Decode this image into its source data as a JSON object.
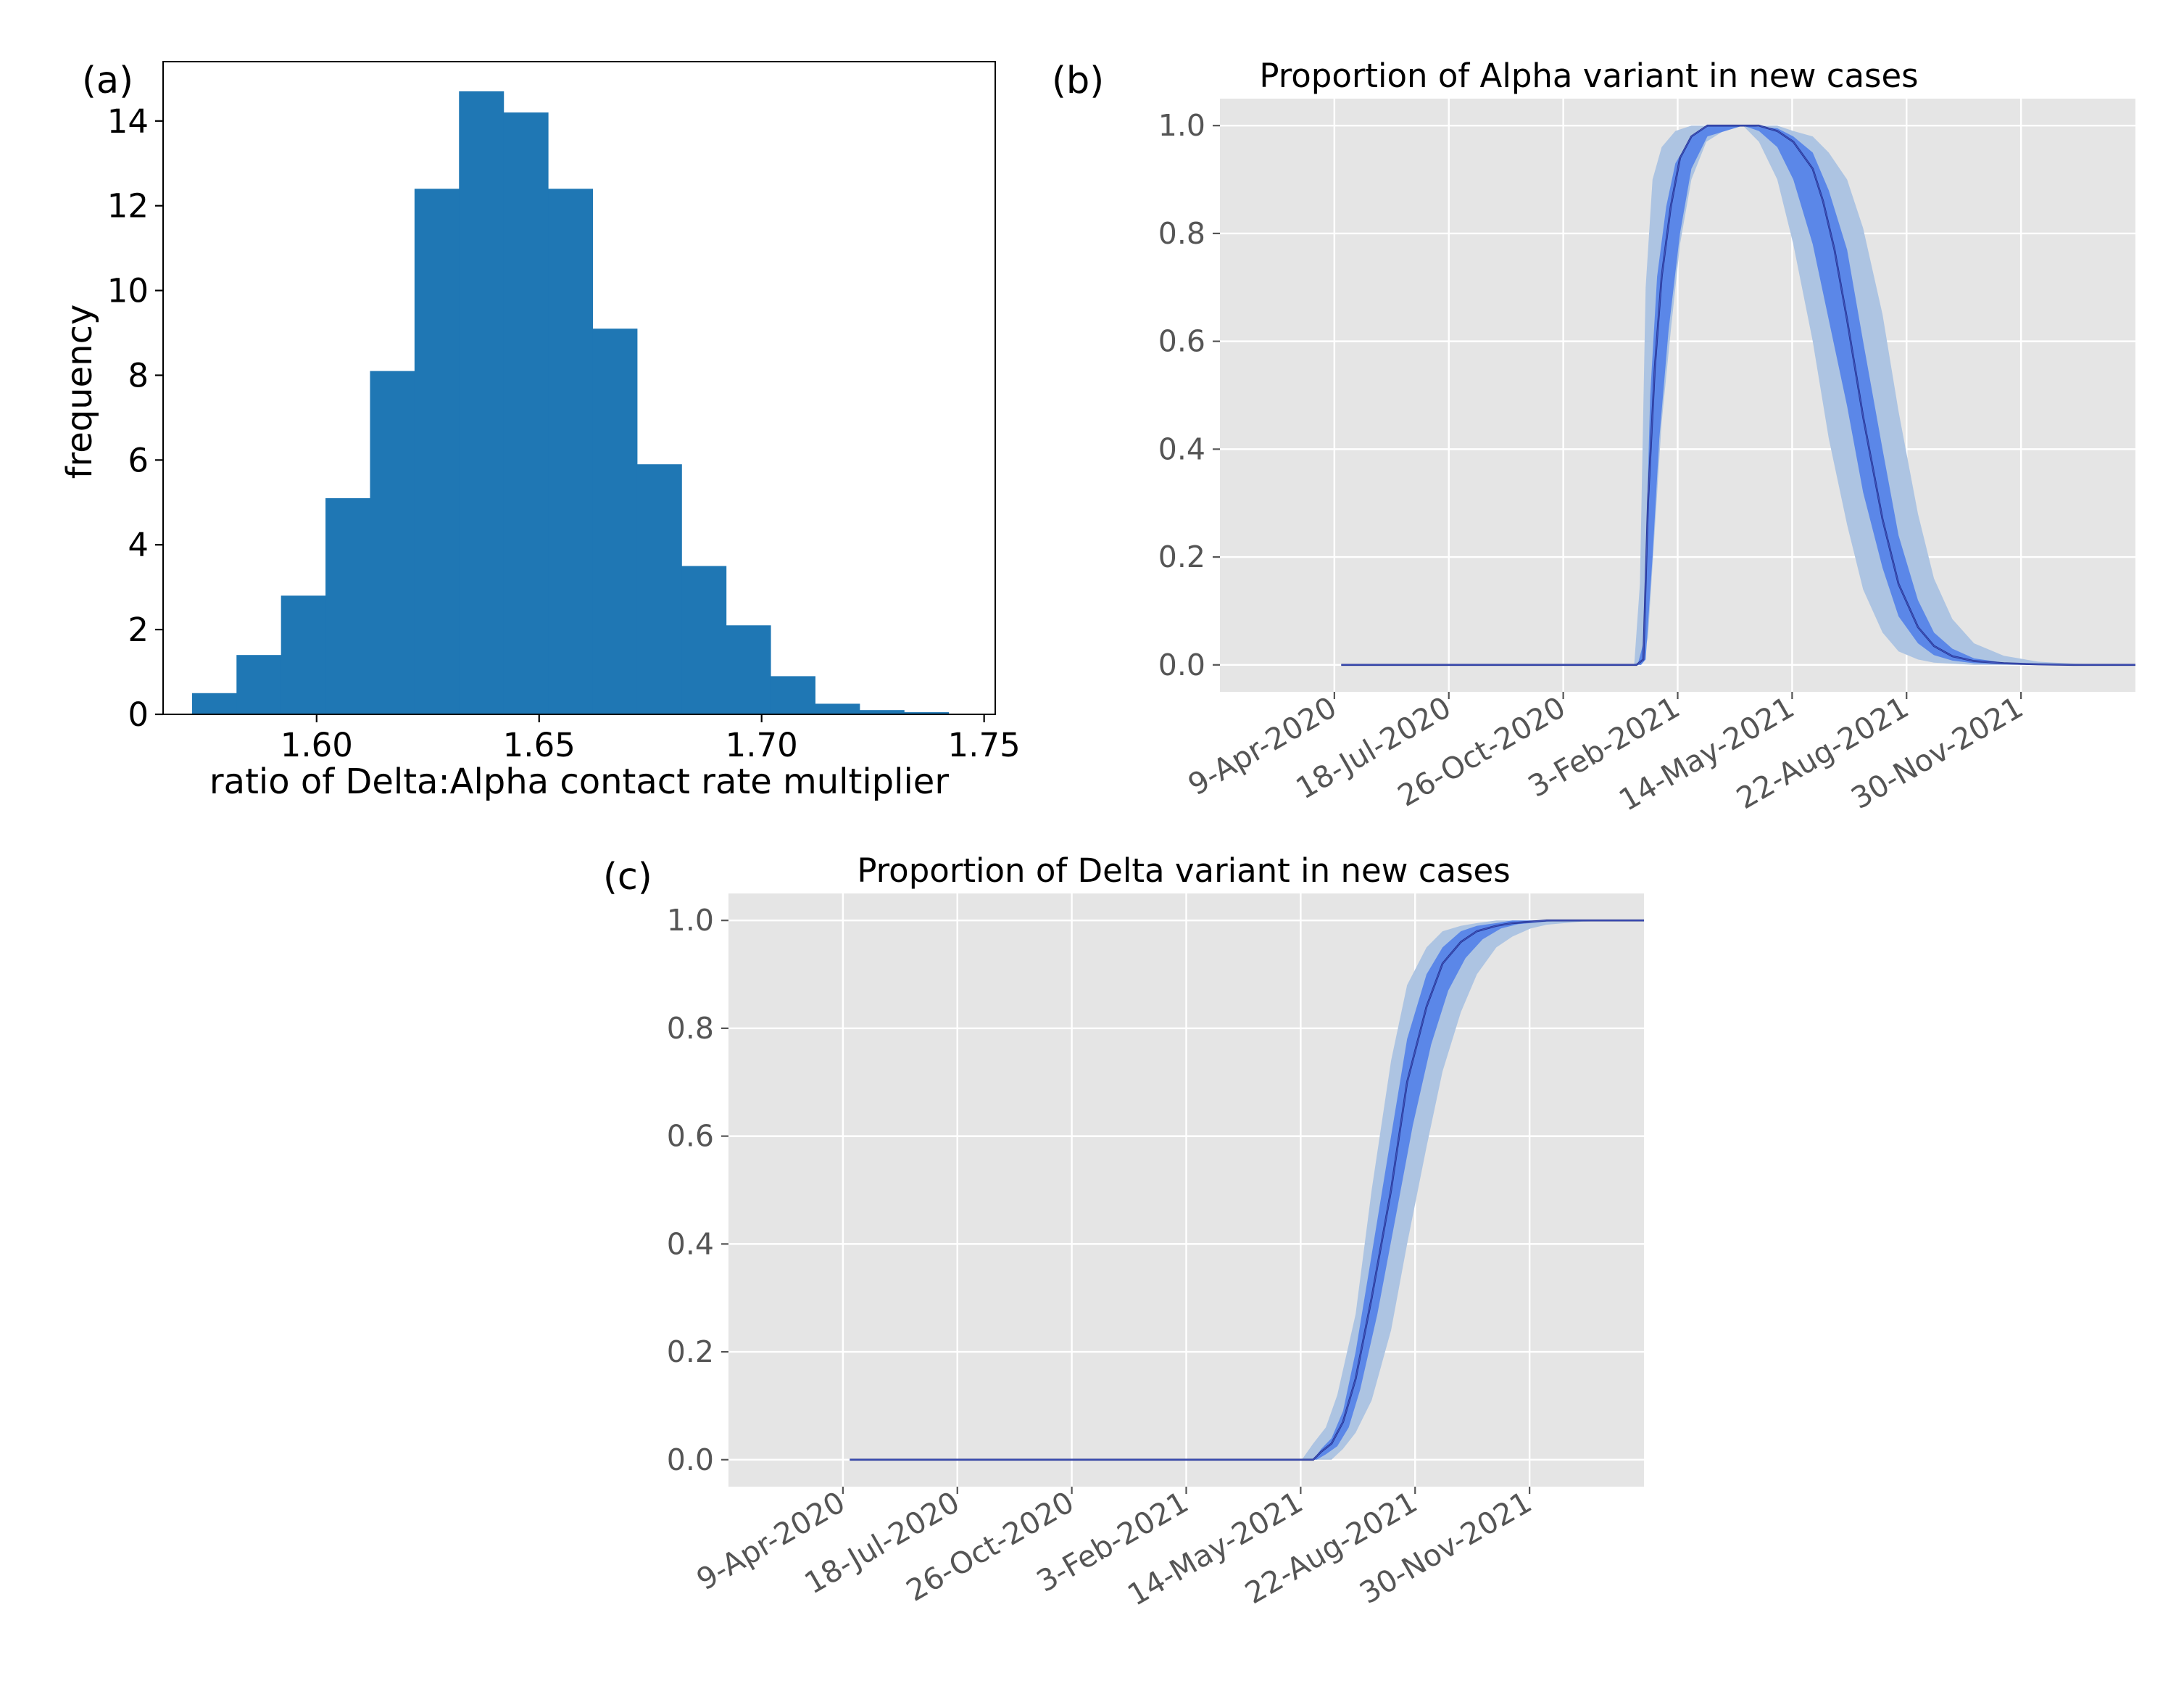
{
  "colors": {
    "bar": "#1f77b4",
    "plot_bg": "#e5e5e5",
    "grid": "#ffffff",
    "band_outer": "#adc4e2",
    "band_inner": "#5b87e8",
    "median_line": "#1f2f8f",
    "tick_text": "#555555"
  },
  "chart_data": [
    {
      "panel": "(a)",
      "type": "bar",
      "title": "",
      "xlabel": "ratio of Delta:Alpha contact rate multiplier",
      "ylabel": "frequency",
      "xlim": [
        1.5655,
        1.7525
      ],
      "ylim": [
        0,
        15.4
      ],
      "x_ticks": [
        "1.60",
        "1.65",
        "1.70",
        "1.75"
      ],
      "y_ticks": [
        "0",
        "2",
        "4",
        "6",
        "8",
        "10",
        "12",
        "14"
      ],
      "bin_edges": [
        1.572,
        1.582,
        1.592,
        1.602,
        1.612,
        1.622,
        1.632,
        1.642,
        1.652,
        1.662,
        1.672,
        1.682,
        1.692,
        1.702,
        1.712,
        1.722,
        1.732,
        1.742
      ],
      "values": [
        0.5,
        1.4,
        2.8,
        5.1,
        8.1,
        12.4,
        14.7,
        14.2,
        12.4,
        9.1,
        5.9,
        3.5,
        2.1,
        0.9,
        0.25,
        0.1,
        0.05
      ]
    },
    {
      "panel": "(b)",
      "type": "line",
      "title": "Proportion of Alpha variant in new cases",
      "xlabel": "",
      "ylabel": "",
      "ylim": [
        -0.05,
        1.05
      ],
      "x_range": [
        "2019-12-31",
        "2022-03-10"
      ],
      "x_ticks": [
        "9-Apr-2020",
        "18-Jul-2020",
        "26-Oct-2020",
        "3-Feb-2021",
        "14-May-2021",
        "22-Aug-2021",
        "30-Nov-2021"
      ],
      "y_ticks": [
        "0.0",
        "0.2",
        "0.4",
        "0.6",
        "0.8",
        "1.0"
      ],
      "grid": true,
      "series": [
        {
          "role": "median",
          "x": [
            "2020-04-15",
            "2020-12-29",
            "2021-01-04",
            "2021-01-08",
            "2021-01-14",
            "2021-01-20",
            "2021-01-28",
            "2021-02-05",
            "2021-02-15",
            "2021-03-01",
            "2021-03-15",
            "2021-04-01",
            "2021-04-15",
            "2021-05-01",
            "2021-05-15",
            "2021-06-01",
            "2021-06-10",
            "2021-06-20",
            "2021-07-01",
            "2021-07-15",
            "2021-08-01",
            "2021-08-15",
            "2021-09-01",
            "2021-09-15",
            "2021-10-01",
            "2021-10-20",
            "2021-11-15",
            "2021-12-15",
            "2022-01-15",
            "2022-03-10"
          ],
          "y": [
            0.0,
            0.0,
            0.01,
            0.3,
            0.55,
            0.72,
            0.85,
            0.94,
            0.98,
            1.0,
            1.0,
            1.0,
            1.0,
            0.99,
            0.97,
            0.92,
            0.86,
            0.77,
            0.64,
            0.46,
            0.27,
            0.15,
            0.07,
            0.035,
            0.016,
            0.007,
            0.003,
            0.001,
            0.0,
            0.0
          ]
        },
        {
          "role": "band_outer_upper",
          "x": [
            "2020-04-15",
            "2020-12-27",
            "2021-01-01",
            "2021-01-06",
            "2021-01-12",
            "2021-01-20",
            "2021-02-01",
            "2021-02-15",
            "2021-03-01",
            "2021-04-01",
            "2021-05-01",
            "2021-05-15",
            "2021-06-01",
            "2021-06-15",
            "2021-07-01",
            "2021-07-15",
            "2021-08-01",
            "2021-08-15",
            "2021-09-01",
            "2021-09-15",
            "2021-10-01",
            "2021-10-20",
            "2021-11-15",
            "2021-12-15",
            "2022-01-15",
            "2022-03-10"
          ],
          "y": [
            0.0,
            0.0,
            0.15,
            0.7,
            0.9,
            0.96,
            0.99,
            1.0,
            1.0,
            1.0,
            1.0,
            0.99,
            0.98,
            0.95,
            0.9,
            0.81,
            0.65,
            0.47,
            0.28,
            0.16,
            0.085,
            0.04,
            0.017,
            0.006,
            0.002,
            0.0
          ]
        },
        {
          "role": "band_outer_lower",
          "x": [
            "2020-04-15",
            "2021-01-02",
            "2021-01-08",
            "2021-01-14",
            "2021-01-20",
            "2021-01-28",
            "2021-02-05",
            "2021-02-15",
            "2021-02-28",
            "2021-03-15",
            "2021-04-01",
            "2021-04-15",
            "2021-05-01",
            "2021-05-15",
            "2021-06-01",
            "2021-06-15",
            "2021-07-01",
            "2021-07-15",
            "2021-08-01",
            "2021-08-15",
            "2021-09-01",
            "2021-09-15",
            "2021-10-01",
            "2021-10-20",
            "2021-11-15",
            "2021-12-15",
            "2022-01-15",
            "2022-03-10"
          ],
          "y": [
            0.0,
            0.0,
            0.05,
            0.25,
            0.45,
            0.62,
            0.78,
            0.9,
            0.97,
            0.99,
            1.0,
            0.97,
            0.9,
            0.78,
            0.6,
            0.42,
            0.26,
            0.14,
            0.06,
            0.025,
            0.01,
            0.004,
            0.002,
            0.0,
            0.0,
            0.0,
            0.0,
            0.0
          ]
        },
        {
          "role": "band_inner_upper",
          "x": [
            "2020-04-15",
            "2020-12-30",
            "2021-01-04",
            "2021-01-10",
            "2021-01-16",
            "2021-01-24",
            "2021-02-01",
            "2021-02-15",
            "2021-03-01",
            "2021-04-01",
            "2021-05-01",
            "2021-05-15",
            "2021-06-01",
            "2021-06-15",
            "2021-07-01",
            "2021-07-15",
            "2021-08-01",
            "2021-08-15",
            "2021-09-01",
            "2021-09-15",
            "2021-10-01",
            "2021-10-20",
            "2021-11-15",
            "2021-12-15",
            "2022-01-15",
            "2022-03-10"
          ],
          "y": [
            0.0,
            0.0,
            0.04,
            0.5,
            0.72,
            0.85,
            0.93,
            0.98,
            1.0,
            1.0,
            0.995,
            0.98,
            0.95,
            0.88,
            0.77,
            0.6,
            0.4,
            0.24,
            0.12,
            0.06,
            0.03,
            0.012,
            0.004,
            0.001,
            0.0,
            0.0
          ]
        },
        {
          "role": "band_inner_lower",
          "x": [
            "2020-04-15",
            "2021-01-02",
            "2021-01-06",
            "2021-01-12",
            "2021-01-18",
            "2021-01-26",
            "2021-02-05",
            "2021-02-15",
            "2021-03-01",
            "2021-04-01",
            "2021-04-15",
            "2021-05-01",
            "2021-05-15",
            "2021-06-01",
            "2021-06-15",
            "2021-07-01",
            "2021-07-15",
            "2021-08-01",
            "2021-08-15",
            "2021-09-01",
            "2021-09-15",
            "2021-10-01",
            "2021-10-20",
            "2021-11-15",
            "2021-12-15",
            "2022-01-15",
            "2022-03-10"
          ],
          "y": [
            0.0,
            0.0,
            0.01,
            0.2,
            0.42,
            0.62,
            0.8,
            0.92,
            0.98,
            1.0,
            0.99,
            0.96,
            0.9,
            0.78,
            0.64,
            0.48,
            0.32,
            0.18,
            0.09,
            0.04,
            0.018,
            0.008,
            0.003,
            0.001,
            0.0,
            0.0,
            0.0
          ]
        }
      ]
    },
    {
      "panel": "(c)",
      "type": "line",
      "title": "Proportion of Delta variant in new cases",
      "xlabel": "",
      "ylabel": "",
      "ylim": [
        -0.05,
        1.05
      ],
      "x_range": [
        "2019-12-31",
        "2022-03-10"
      ],
      "x_ticks": [
        "9-Apr-2020",
        "18-Jul-2020",
        "26-Oct-2020",
        "3-Feb-2021",
        "14-May-2021",
        "22-Aug-2021",
        "30-Nov-2021"
      ],
      "y_ticks": [
        "0.0",
        "0.2",
        "0.4",
        "0.6",
        "0.8",
        "1.0"
      ],
      "grid": true,
      "series": [
        {
          "role": "median",
          "x": [
            "2020-04-15",
            "2021-05-25",
            "2021-06-01",
            "2021-06-10",
            "2021-06-20",
            "2021-07-01",
            "2021-07-15",
            "2021-08-01",
            "2021-08-15",
            "2021-09-01",
            "2021-09-15",
            "2021-10-01",
            "2021-10-15",
            "2021-11-01",
            "2021-11-15",
            "2021-12-15",
            "2022-01-15",
            "2022-03-10"
          ],
          "y": [
            0.0,
            0.0,
            0.015,
            0.03,
            0.07,
            0.15,
            0.3,
            0.5,
            0.7,
            0.84,
            0.92,
            0.96,
            0.98,
            0.99,
            0.995,
            1.0,
            1.0,
            1.0
          ]
        },
        {
          "role": "band_outer_upper",
          "x": [
            "2020-04-15",
            "2021-05-15",
            "2021-05-25",
            "2021-06-05",
            "2021-06-15",
            "2021-07-01",
            "2021-07-15",
            "2021-08-01",
            "2021-08-15",
            "2021-09-01",
            "2021-09-15",
            "2021-10-01",
            "2021-10-15",
            "2021-11-01",
            "2021-11-15",
            "2021-12-15",
            "2022-01-15",
            "2022-03-10"
          ],
          "y": [
            0.0,
            0.0,
            0.03,
            0.06,
            0.12,
            0.27,
            0.5,
            0.74,
            0.88,
            0.95,
            0.98,
            0.99,
            0.995,
            1.0,
            1.0,
            1.0,
            1.0,
            1.0
          ]
        },
        {
          "role": "band_outer_lower",
          "x": [
            "2020-04-15",
            "2021-06-10",
            "2021-06-20",
            "2021-07-01",
            "2021-07-15",
            "2021-08-01",
            "2021-08-15",
            "2021-09-01",
            "2021-09-15",
            "2021-10-01",
            "2021-10-15",
            "2021-11-01",
            "2021-11-15",
            "2021-12-01",
            "2021-12-15",
            "2022-01-15",
            "2022-03-10"
          ],
          "y": [
            0.0,
            0.0,
            0.02,
            0.05,
            0.11,
            0.24,
            0.4,
            0.58,
            0.72,
            0.83,
            0.9,
            0.95,
            0.97,
            0.985,
            0.992,
            0.998,
            1.0
          ]
        },
        {
          "role": "band_inner_upper",
          "x": [
            "2020-04-15",
            "2021-05-25",
            "2021-06-01",
            "2021-06-10",
            "2021-06-20",
            "2021-07-01",
            "2021-07-15",
            "2021-08-01",
            "2021-08-15",
            "2021-09-01",
            "2021-09-15",
            "2021-10-01",
            "2021-10-15",
            "2021-11-01",
            "2021-11-15",
            "2021-12-15",
            "2022-01-15",
            "2022-03-10"
          ],
          "y": [
            0.0,
            0.0,
            0.02,
            0.04,
            0.09,
            0.2,
            0.38,
            0.6,
            0.78,
            0.9,
            0.95,
            0.98,
            0.99,
            0.995,
            1.0,
            1.0,
            1.0,
            1.0
          ]
        },
        {
          "role": "band_inner_lower",
          "x": [
            "2020-04-15",
            "2021-05-28",
            "2021-06-05",
            "2021-06-15",
            "2021-06-25",
            "2021-07-05",
            "2021-07-20",
            "2021-08-05",
            "2021-08-20",
            "2021-09-05",
            "2021-09-20",
            "2021-10-05",
            "2021-10-20",
            "2021-11-05",
            "2021-11-20",
            "2021-12-15",
            "2022-01-15",
            "2022-03-10"
          ],
          "y": [
            0.0,
            0.0,
            0.01,
            0.025,
            0.06,
            0.13,
            0.27,
            0.45,
            0.62,
            0.77,
            0.87,
            0.93,
            0.965,
            0.985,
            0.993,
            0.998,
            1.0,
            1.0
          ]
        }
      ]
    }
  ]
}
